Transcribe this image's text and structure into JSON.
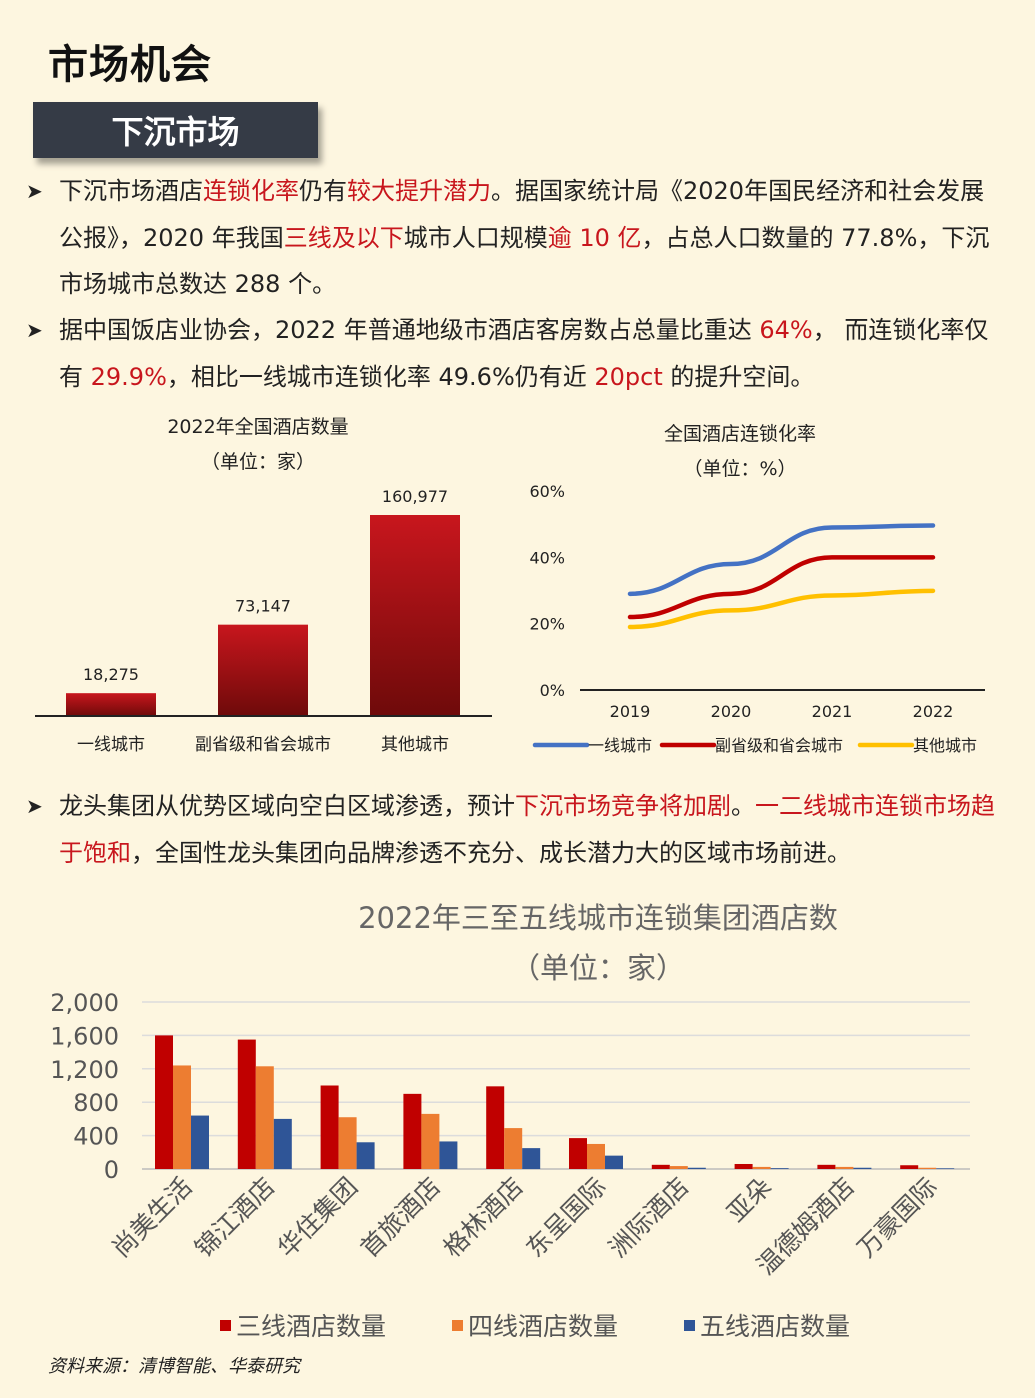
{
  "page_title": "市场机会",
  "section_tag": "下沉市场",
  "bullets": [
    {
      "parts": [
        {
          "t": "下沉市场酒店"
        },
        {
          "t": "连锁化率",
          "red": true
        },
        {
          "t": "仍有"
        },
        {
          "t": "较大提升潜力",
          "red": true
        },
        {
          "t": "。据国家统计局《2020年国民经济和社会发展公报》，2020 年我国"
        },
        {
          "t": "三线及以下",
          "red": true
        },
        {
          "t": "城市人口规模"
        },
        {
          "t": "逾 10 亿",
          "red": true
        },
        {
          "t": "，占总人口数量的 77.8%，下沉市场城市总数达 288 个。"
        }
      ]
    },
    {
      "parts": [
        {
          "t": "据中国饭店业协会，2022 年普通地级市酒店客房数占总量比重达 "
        },
        {
          "t": "64%",
          "red": true
        },
        {
          "t": "， 而连锁化率仅有 "
        },
        {
          "t": "29.9%",
          "red": true
        },
        {
          "t": "，相比一线城市连锁化率 49.6%仍有近 "
        },
        {
          "t": "20pct",
          "red": true
        },
        {
          "t": " 的提升空间。"
        }
      ]
    },
    {
      "parts": [
        {
          "t": "龙头集团从优势区域向空白区域渗透，预计"
        },
        {
          "t": "下沉市场竞争将加剧",
          "red": true
        },
        {
          "t": "。"
        },
        {
          "t": "一二线城市连锁市场趋于饱和",
          "red": true
        },
        {
          "t": "，全国性龙头集团向品牌渗透不充分、成长潜力大的区域市场前进。"
        }
      ]
    }
  ],
  "source": "资料来源：清博智能、华泰研究",
  "chart_data": [
    {
      "type": "bar",
      "title": "2022年全国酒店数量",
      "subtitle": "（单位：家）",
      "categories": [
        "一线城市",
        "副省级和省会城市",
        "其他城市"
      ],
      "values": [
        18275,
        73147,
        160977
      ],
      "value_labels": [
        "18,275",
        "73,147",
        "160,977"
      ],
      "ylim": [
        0,
        160977
      ],
      "grid": false,
      "colors": {
        "bar_top": "#c8161d",
        "bar_bottom": "#6e0a0a"
      }
    },
    {
      "type": "line",
      "title": "全国酒店连锁化率",
      "subtitle": "（单位：%）",
      "x": [
        "2019",
        "2020",
        "2021",
        "2022"
      ],
      "ylim": [
        0,
        60
      ],
      "yticks": [
        "0%",
        "20%",
        "40%",
        "60%"
      ],
      "series": [
        {
          "name": "一线城市",
          "values": [
            29,
            38,
            49,
            49.6
          ],
          "color": "#4472c4"
        },
        {
          "name": "副省级和省会城市",
          "values": [
            22,
            29,
            40,
            40
          ],
          "color": "#c00000"
        },
        {
          "name": "其他城市",
          "values": [
            19,
            24,
            28.5,
            29.9
          ],
          "color": "#ffc000"
        }
      ],
      "legend": "bottom",
      "grid": false
    },
    {
      "type": "bar",
      "title": "2022年三至五线城市连锁集团酒店数",
      "subtitle": "（单位：家）",
      "categories": [
        "尚美生活",
        "锦江酒店",
        "华住集团",
        "首旅酒店",
        "格林酒店",
        "东呈国际",
        "洲际酒店",
        "亚朵",
        "温德姆酒店",
        "万豪国际"
      ],
      "series": [
        {
          "name": "三线酒店数量",
          "values": [
            1600,
            1550,
            1000,
            900,
            990,
            370,
            50,
            60,
            50,
            45
          ],
          "color": "#c00000"
        },
        {
          "name": "四线酒店数量",
          "values": [
            1240,
            1230,
            620,
            660,
            490,
            300,
            35,
            25,
            25,
            15
          ],
          "color": "#ed7d31"
        },
        {
          "name": "五线酒店数量",
          "values": [
            640,
            600,
            320,
            330,
            250,
            160,
            15,
            10,
            15,
            8
          ],
          "color": "#2f5597"
        }
      ],
      "ylim": [
        0,
        2000
      ],
      "yticks": [
        "0",
        "400",
        "800",
        "1,200",
        "1,600",
        "2,000"
      ],
      "grid": true,
      "legend": "bottom"
    }
  ]
}
